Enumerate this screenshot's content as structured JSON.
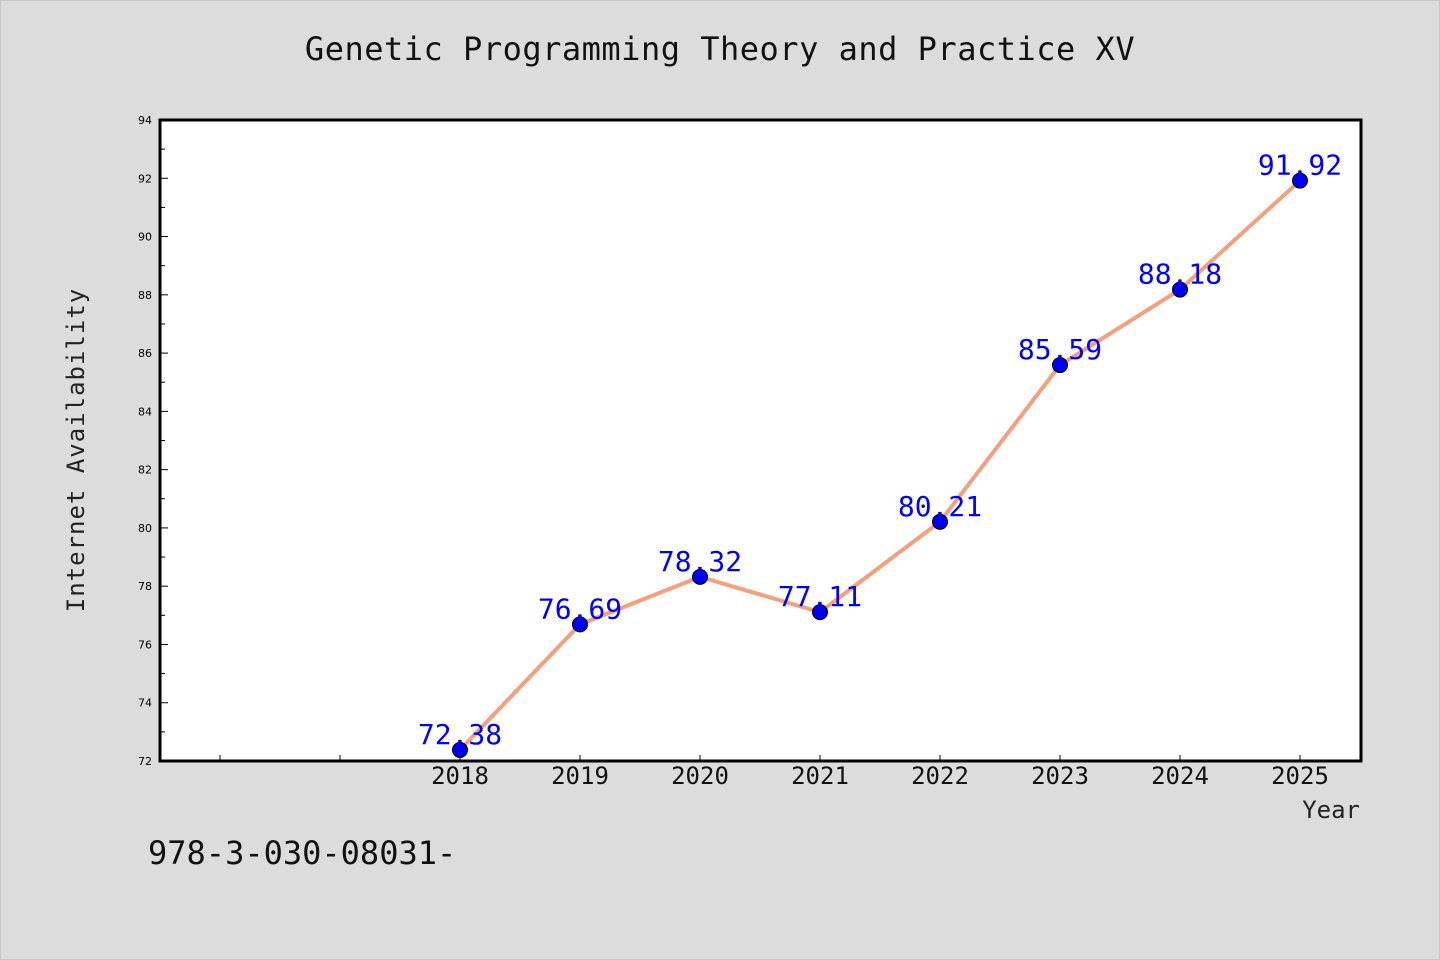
{
  "chart_data": {
    "type": "line",
    "title": "Genetic Programming Theory and Practice XV",
    "xlabel": "Year",
    "ylabel": "Internet Availability",
    "categories": [
      "2018",
      "2019",
      "2020",
      "2021",
      "2022",
      "2023",
      "2024",
      "2025"
    ],
    "series": [
      {
        "values": [
          72.38,
          76.69,
          78.32,
          77.11,
          80.21,
          85.59,
          88.18,
          91.92
        ],
        "data_labels": [
          "72.38",
          "76.69",
          "78.32",
          "77.11",
          "80.21",
          "85.59",
          "88.18",
          "91.92"
        ],
        "line_color": "#f4a07c",
        "marker_color": "#0000ee"
      }
    ],
    "ylim": [
      72,
      94
    ],
    "yticks": [
      "72",
      "74",
      "76",
      "78",
      "80",
      "82",
      "84",
      "86",
      "88",
      "90",
      "92",
      "94"
    ],
    "grid": false,
    "label_color": "#0000ff"
  },
  "footer": "978-3-030-08031-"
}
